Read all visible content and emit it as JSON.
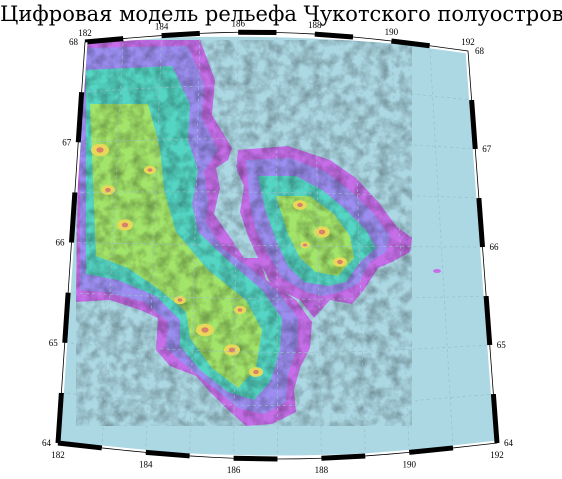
{
  "title": "Цифровая модель рельефа Чукотского полуострова",
  "map": {
    "projection": "conic",
    "lon_range": [
      182,
      192
    ],
    "lat_range": [
      64,
      68
    ],
    "lon_ticks": [
      "182",
      "184",
      "186",
      "188",
      "190",
      "192"
    ],
    "lat_ticks": [
      "64",
      "65",
      "66",
      "67",
      "68"
    ],
    "colors": {
      "sea": "#acd8e4",
      "lowland": "#c56ee8",
      "plain": "#9b8ef0",
      "hills": "#55d6c4",
      "upland": "#a3e46a",
      "high": "#e8d85a",
      "peak": "#d9806a",
      "frame_dark": "#000000",
      "frame_light": "#ffffff"
    },
    "grid": "dashed"
  }
}
